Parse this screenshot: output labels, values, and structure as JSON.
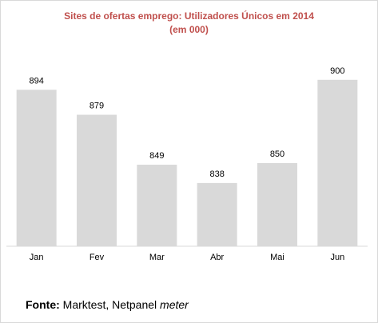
{
  "chart_data": {
    "type": "bar",
    "title_line1": "Sites de ofertas emprego: Utilizadores Únicos em 2014",
    "title_line2": "(em 000)",
    "categories": [
      "Jan",
      "Fev",
      "Mar",
      "Abr",
      "Mai",
      "Jun"
    ],
    "values": [
      894,
      879,
      849,
      838,
      850,
      900
    ],
    "ylim": [
      800,
      910
    ],
    "grid": false,
    "bar_color": "#d9d9d9",
    "data_labels": true
  },
  "source": {
    "label": "Fonte:",
    "text": "Marktest, Netpanel",
    "suffix": "meter"
  },
  "colors": {
    "title": "#c0504d",
    "bar": "#d9d9d9",
    "axis": "#d9d9d9"
  }
}
